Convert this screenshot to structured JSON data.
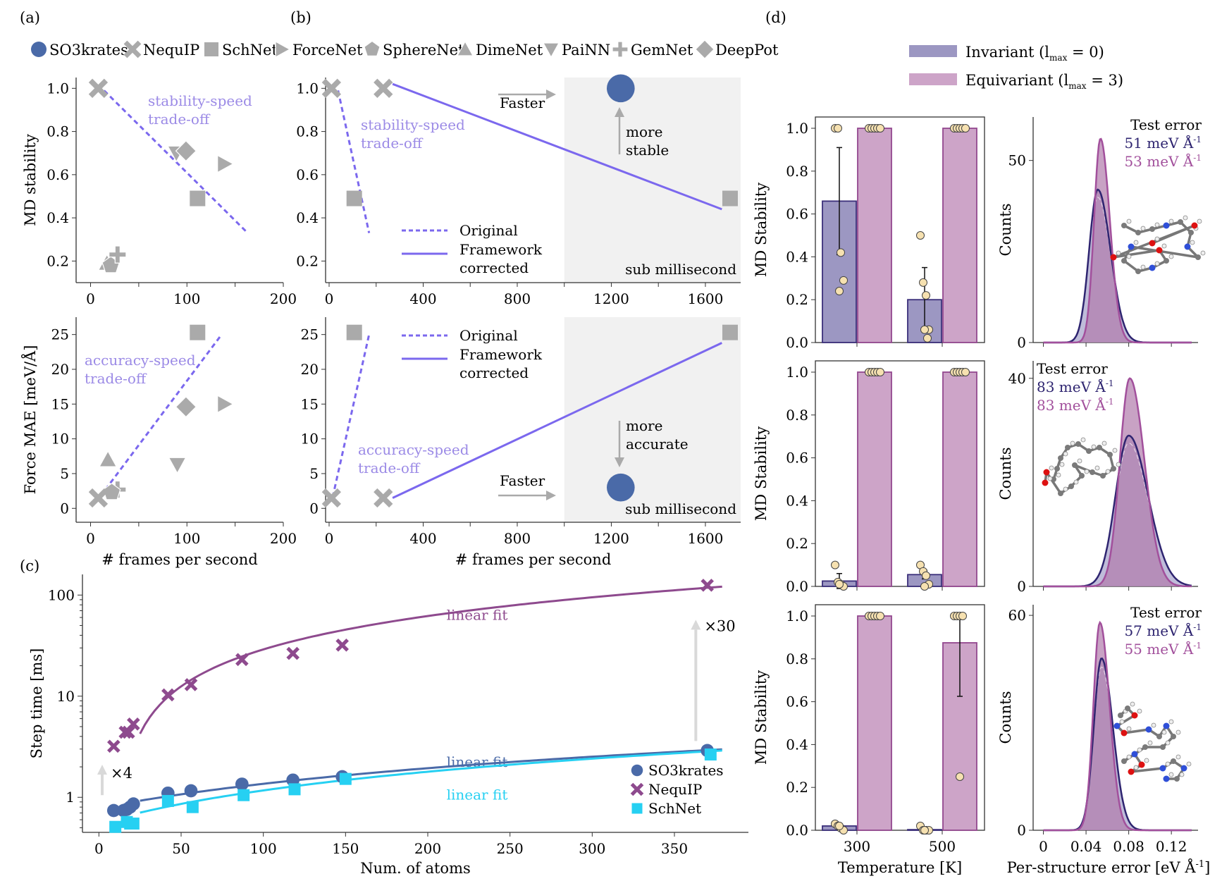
{
  "panel_labels": {
    "a": "(a)",
    "b": "(b)",
    "c": "(c)",
    "d": "(d)"
  },
  "colors": {
    "gray_marker": "#aaaaaa",
    "tradeoff_purple": "#7b68ee",
    "tradeoff_text": "#9b8ae6",
    "so3krates_blue": "#4a6aa8",
    "nequip_purple": "#8e4a8e",
    "schnet_cyan": "#26d0f2",
    "invariant_fill": "#9c97c2",
    "invariant_edge": "#3b2f7a",
    "equivariant_fill": "#cda4c8",
    "equivariant_edge": "#93488f",
    "dot_fill": "#f6e1b0",
    "shade": "#f1f1f1",
    "arrow_gray": "#aaaaaa"
  },
  "top_legend": [
    {
      "label": "SO3krates",
      "marker": "circle",
      "color": "#4a6aa8"
    },
    {
      "label": "NequIP",
      "marker": "x",
      "color": "#aaaaaa"
    },
    {
      "label": "SchNet",
      "marker": "square",
      "color": "#aaaaaa"
    },
    {
      "label": "ForceNet",
      "marker": "triangle-right",
      "color": "#aaaaaa"
    },
    {
      "label": "SphereNet",
      "marker": "pentagon",
      "color": "#aaaaaa"
    },
    {
      "label": "DimeNet",
      "marker": "triangle-up",
      "color": "#aaaaaa"
    },
    {
      "label": "PaiNN",
      "marker": "triangle-down",
      "color": "#aaaaaa"
    },
    {
      "label": "GemNet",
      "marker": "plus",
      "color": "#aaaaaa"
    },
    {
      "label": "DeepPot",
      "marker": "diamond",
      "color": "#aaaaaa"
    }
  ],
  "chart_data": [
    {
      "id": "a-top",
      "type": "scatter",
      "xlabel": "",
      "ylabel": "MD stability",
      "xlim": [
        -15,
        200
      ],
      "ylim": [
        0.1,
        1.05
      ],
      "xticks": [
        0,
        100,
        200
      ],
      "xminor": [
        50,
        150
      ],
      "yticks": [
        0.2,
        0.4,
        0.6,
        0.8,
        1.0
      ],
      "ytick_labels": [
        "0.2",
        "0.4",
        "0.6",
        "0.8",
        "1.0"
      ],
      "points": [
        {
          "model": "NequIP",
          "marker": "x",
          "x": 8,
          "y": 1.0
        },
        {
          "model": "PaiNN",
          "marker": "triangle-down",
          "x": 89,
          "y": 0.7
        },
        {
          "model": "DeepPot",
          "marker": "diamond",
          "x": 99,
          "y": 0.71
        },
        {
          "model": "ForceNet",
          "marker": "triangle-right",
          "x": 139,
          "y": 0.65
        },
        {
          "model": "SchNet",
          "marker": "square",
          "x": 111,
          "y": 0.49
        },
        {
          "model": "DimeNet",
          "marker": "triangle-up",
          "x": 17,
          "y": 0.19
        },
        {
          "model": "SphereNet",
          "marker": "pentagon",
          "x": 21,
          "y": 0.18
        },
        {
          "model": "GemNet",
          "marker": "plus",
          "x": 28,
          "y": 0.23
        }
      ],
      "trend": {
        "style": "dashed",
        "from": [
          14,
          0.99
        ],
        "to": [
          163,
          0.33
        ]
      },
      "annotation": [
        "stability-speed",
        "trade-off"
      ]
    },
    {
      "id": "b-top",
      "type": "scatter",
      "xlabel": "",
      "ylabel": "",
      "xlim": [
        -15,
        1750
      ],
      "ylim": [
        0.1,
        1.05
      ],
      "xticks": [
        0,
        400,
        800,
        1200,
        1600
      ],
      "xminor": [
        200,
        600,
        1000,
        1400
      ],
      "yticks": [
        0.2,
        0.4,
        0.6,
        0.8,
        1.0
      ],
      "ytick_labels": [
        "0.2",
        "0.4",
        "0.6",
        "0.8",
        "1.0"
      ],
      "shade_from": 1000,
      "shade_label": "sub millisecond",
      "points": [
        {
          "model": "NequIP",
          "marker": "x",
          "x": 10,
          "y": 1.0
        },
        {
          "model": "SchNet",
          "marker": "square",
          "x": 107,
          "y": 0.49
        },
        {
          "model": "NequIP",
          "marker": "x",
          "x": 230,
          "y": 1.0
        },
        {
          "model": "SchNet",
          "marker": "square",
          "x": 1705,
          "y": 0.49
        },
        {
          "model": "SO3krates",
          "marker": "circle",
          "x": 1240,
          "y": 1.0
        }
      ],
      "original_line": {
        "from": [
          38,
          0.99
        ],
        "to": [
          170,
          0.33
        ]
      },
      "corrected_line": {
        "from": [
          270,
          1.02
        ],
        "to": [
          1670,
          0.44
        ]
      },
      "legend": {
        "original": "Original",
        "corrected": [
          "Framework",
          "corrected"
        ]
      },
      "annotation": [
        "stability-speed",
        "trade-off"
      ],
      "faster_label": "Faster",
      "improve_label": [
        "more",
        "stable"
      ]
    },
    {
      "id": "a-bottom",
      "type": "scatter",
      "xlabel": "# frames per second",
      "ylabel": "Force MAE [meV/Å]",
      "xlim": [
        -15,
        200
      ],
      "ylim": [
        -2,
        27.5
      ],
      "xticks": [
        0,
        100,
        200
      ],
      "xminor": [
        50,
        150
      ],
      "yticks": [
        0,
        5,
        10,
        15,
        20,
        25
      ],
      "ytick_labels": [
        "0",
        "5",
        "10",
        "15",
        "20",
        "25"
      ],
      "points": [
        {
          "model": "SchNet",
          "marker": "square",
          "x": 111,
          "y": 25.3
        },
        {
          "model": "DeepPot",
          "marker": "diamond",
          "x": 99,
          "y": 14.6
        },
        {
          "model": "ForceNet",
          "marker": "triangle-right",
          "x": 139,
          "y": 15.0
        },
        {
          "model": "DimeNet",
          "marker": "triangle-up",
          "x": 18,
          "y": 7.0
        },
        {
          "model": "PaiNN",
          "marker": "triangle-down",
          "x": 90,
          "y": 6.3
        },
        {
          "model": "GemNet",
          "marker": "plus",
          "x": 28,
          "y": 2.7
        },
        {
          "model": "SphereNet",
          "marker": "pentagon",
          "x": 22,
          "y": 2.3
        },
        {
          "model": "NequIP",
          "marker": "x",
          "x": 8,
          "y": 1.5
        }
      ],
      "trend": {
        "style": "dashed",
        "from": [
          10,
          1.7
        ],
        "to": [
          136,
          25.0
        ]
      },
      "annotation": [
        "accuracy-speed",
        "trade-off"
      ]
    },
    {
      "id": "b-bottom",
      "type": "scatter",
      "xlabel": "# frames per second",
      "ylabel": "",
      "xlim": [
        -15,
        1750
      ],
      "ylim": [
        -2,
        27.5
      ],
      "xticks": [
        0,
        400,
        800,
        1200,
        1600
      ],
      "xminor": [
        200,
        600,
        1000,
        1400
      ],
      "yticks": [
        0,
        5,
        10,
        15,
        20,
        25
      ],
      "ytick_labels": [
        "0",
        "5",
        "10",
        "15",
        "20",
        "25"
      ],
      "shade_from": 1000,
      "shade_label": "sub millisecond",
      "points": [
        {
          "model": "SchNet",
          "marker": "square",
          "x": 107,
          "y": 25.3
        },
        {
          "model": "NequIP",
          "marker": "x",
          "x": 10,
          "y": 1.5
        },
        {
          "model": "NequIP",
          "marker": "x",
          "x": 230,
          "y": 1.5
        },
        {
          "model": "SchNet",
          "marker": "square",
          "x": 1705,
          "y": 25.3
        },
        {
          "model": "SO3krates",
          "marker": "circle",
          "x": 1240,
          "y": 3.0
        }
      ],
      "original_line": {
        "from": [
          15,
          1.6
        ],
        "to": [
          170,
          25.0
        ]
      },
      "corrected_line": {
        "from": [
          270,
          1.5
        ],
        "to": [
          1670,
          23.8
        ]
      },
      "legend": {
        "original": "Original",
        "corrected": [
          "Framework",
          "corrected"
        ]
      },
      "annotation": [
        "accuracy-speed",
        "trade-off"
      ],
      "faster_label": "Faster",
      "improve_label": [
        "more",
        "accurate"
      ]
    },
    {
      "id": "c",
      "type": "scatter",
      "yscale": "log",
      "xlabel": "Num. of atoms",
      "ylabel": "Step time [ms]",
      "xlim": [
        -10,
        395
      ],
      "ylim": [
        0.45,
        160
      ],
      "xticks": [
        0,
        50,
        100,
        150,
        200,
        250,
        300,
        350
      ],
      "yticks": [
        1,
        10,
        100
      ],
      "ytick_labels": [
        "1",
        "10",
        "100"
      ],
      "series": [
        {
          "name": "SO3krates",
          "marker": "circle",
          "color": "#4a6aa8",
          "x": [
            9,
            15,
            17,
            19,
            21,
            42,
            56,
            87,
            118,
            148,
            370
          ],
          "y": [
            0.74,
            0.74,
            0.76,
            0.8,
            0.86,
            1.1,
            1.16,
            1.35,
            1.48,
            1.6,
            2.9
          ],
          "fit_label": "linear fit",
          "fit": {
            "a": 0.0058,
            "b": 0.78,
            "x0": 25,
            "x1": 380
          }
        },
        {
          "name": "NequIP",
          "marker": "x",
          "color": "#8e4a8e",
          "x": [
            9,
            16,
            18,
            21,
            42,
            56,
            87,
            118,
            148,
            370
          ],
          "y": [
            3.2,
            4.4,
            4.4,
            5.3,
            10.3,
            13.0,
            23.0,
            26.5,
            32.0,
            125
          ],
          "fit_label": "linear fit",
          "fit": {
            "a": 0.33,
            "b": -4.0,
            "x0": 25,
            "x1": 380
          }
        },
        {
          "name": "SchNet",
          "marker": "square",
          "color": "#26d0f2",
          "x": [
            10,
            17,
            19,
            21,
            42,
            57,
            88,
            119,
            150,
            372
          ],
          "y": [
            0.51,
            0.57,
            0.55,
            0.55,
            0.92,
            0.8,
            1.05,
            1.2,
            1.52,
            2.65
          ],
          "fit_label": "linear fit",
          "fit": {
            "a": 0.0062,
            "b": 0.55,
            "x0": 25,
            "x1": 380
          }
        }
      ],
      "speedup_small": "×4",
      "speedup_large": "×30",
      "legend_position": "bottom-right"
    }
  ],
  "panel_d": {
    "legend": [
      {
        "label": "Invariant (l",
        "sub": "max",
        "suffix": " = 0)",
        "color": "#9c97c2"
      },
      {
        "label": "Equivariant (l",
        "sub": "max",
        "suffix": " = 3)",
        "color": "#cda4c8"
      }
    ],
    "bar_xlabel": "Temperature [K]",
    "bar_ylabel": "MD Stability",
    "categories": [
      "300",
      "500"
    ],
    "bar_yticks": [
      "0.0",
      "0.2",
      "0.4",
      "0.6",
      "0.8",
      "1.0"
    ],
    "hist_xlabel": "Per-structure error [eV Å",
    "hist_xlabel_sup": "-1",
    "hist_xlabel_end": "]",
    "hist_xticks": [
      "0",
      "0.04",
      "0.08",
      "0.12"
    ],
    "hist_ylabel": "Counts",
    "test_error_title": "Test error",
    "unit": "meV Å",
    "unit_sup": "-1",
    "rows": [
      {
        "bars": {
          "invariant": [
            0.66,
            0.2
          ],
          "invariant_err": [
            0.25,
            0.15
          ],
          "equivariant": [
            1.0,
            1.0
          ],
          "equivariant_err": [
            0,
            0
          ],
          "invariant_dots": [
            [
              1.0,
              1.0,
              0.42,
              0.29,
              0.24
            ],
            [
              0.5,
              0.28,
              0.22,
              0.06,
              0.06,
              0.02
            ]
          ],
          "equivariant_dots": [
            [
              1.0,
              1.0,
              1.0,
              1.0,
              1.0
            ],
            [
              1.0,
              1.0,
              1.0,
              1.0,
              1.0
            ]
          ]
        },
        "hist": {
          "ytick_labels": [
            "0",
            "50"
          ],
          "ymax": 60,
          "ytick_values": [
            0,
            50
          ],
          "invariant": {
            "mean": 0.051,
            "sd": 0.0095,
            "peak": 42
          },
          "equivariant": {
            "mean": 0.0535,
            "sd": 0.007,
            "peak": 56
          },
          "error_invariant": "51",
          "error_equivariant": "53",
          "text_position": "top-right",
          "molecule": "peptide"
        }
      },
      {
        "bars": {
          "invariant": [
            0.025,
            0.055
          ],
          "invariant_err": [
            0.035,
            0.02
          ],
          "equivariant": [
            1.0,
            1.0
          ],
          "equivariant_err": [
            0,
            0
          ],
          "invariant_dots": [
            [
              0.1,
              0.02,
              0.01,
              0.0,
              0.01
            ],
            [
              0.1,
              0.07,
              0.05,
              0.01,
              0.0
            ]
          ],
          "equivariant_dots": [
            [
              1.0,
              1.0,
              1.0,
              1.0,
              1.0
            ],
            [
              1.0,
              1.0,
              1.0,
              1.0,
              1.0
            ]
          ]
        },
        "hist": {
          "ytick_labels": [
            "0",
            "40"
          ],
          "ymax": 42,
          "ytick_values": [
            0,
            40
          ],
          "invariant": {
            "mean": 0.08,
            "sd": 0.0145,
            "peak": 29
          },
          "equivariant": {
            "mean": 0.081,
            "sd": 0.011,
            "peak": 40
          },
          "error_invariant": "83",
          "error_equivariant": "83",
          "text_position": "top-left",
          "molecule": "fatty-acid"
        }
      },
      {
        "bars": {
          "invariant": [
            0.02,
            0.003
          ],
          "invariant_err": [
            0.005,
            0.002
          ],
          "equivariant": [
            1.0,
            0.875
          ],
          "equivariant_err": [
            0,
            0.25
          ],
          "invariant_dots": [
            [
              0.03,
              0.02,
              0.01,
              0.0,
              0.02
            ],
            [
              0.02,
              0.0,
              0.0,
              0.0,
              0.0
            ]
          ],
          "equivariant_dots": [
            [
              1.0,
              1.0,
              1.0,
              1.0,
              1.0
            ],
            [
              1.0,
              1.0,
              1.0,
              1.0,
              0.25
            ]
          ]
        },
        "hist": {
          "ytick_labels": [
            "0",
            "60"
          ],
          "ymax": 61,
          "ytick_values": [
            0,
            60
          ],
          "invariant": {
            "mean": 0.0545,
            "sd": 0.0085,
            "peak": 48
          },
          "equivariant": {
            "mean": 0.053,
            "sd": 0.0072,
            "peak": 58
          },
          "error_invariant": "57",
          "error_equivariant": "55",
          "text_position": "top-right",
          "molecule": "dna-bases"
        }
      }
    ]
  }
}
